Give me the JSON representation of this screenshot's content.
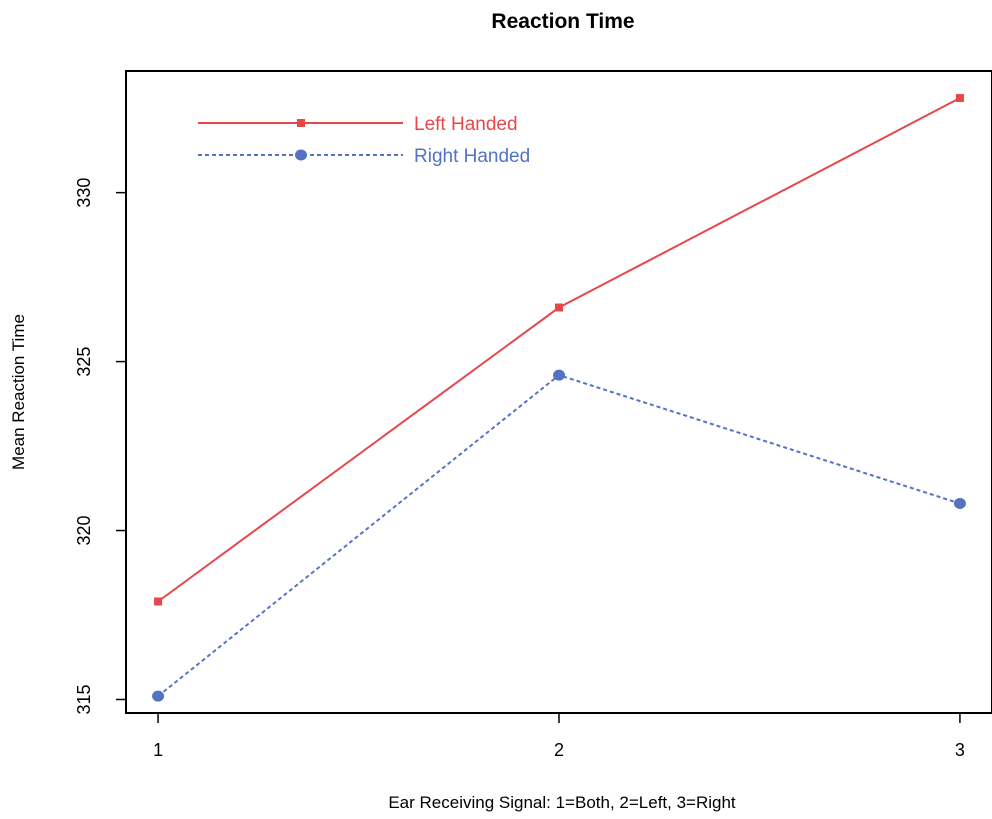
{
  "chart_data": {
    "type": "line",
    "title": "Reaction Time",
    "xlabel": "Ear Receiving Signal: 1=Both, 2=Left, 3=Right",
    "ylabel": "Mean Reaction Time",
    "x": [
      1,
      2,
      3
    ],
    "x_ticks": [
      "1",
      "2",
      "3"
    ],
    "y_ticks": [
      "315",
      "320",
      "325",
      "330"
    ],
    "xlim": [
      0.92,
      3.08
    ],
    "ylim": [
      314.6,
      333.6
    ],
    "grid": false,
    "legend_position": "top-left",
    "series": [
      {
        "name": "Left Handed",
        "values": [
          317.9,
          326.6,
          332.8
        ],
        "color": "#e8474a",
        "line_style": "solid",
        "marker": "square"
      },
      {
        "name": "Right Handed",
        "values": [
          315.1,
          324.6,
          320.8
        ],
        "color": "#5472c4",
        "line_style": "dotted",
        "marker": "circle"
      }
    ]
  }
}
